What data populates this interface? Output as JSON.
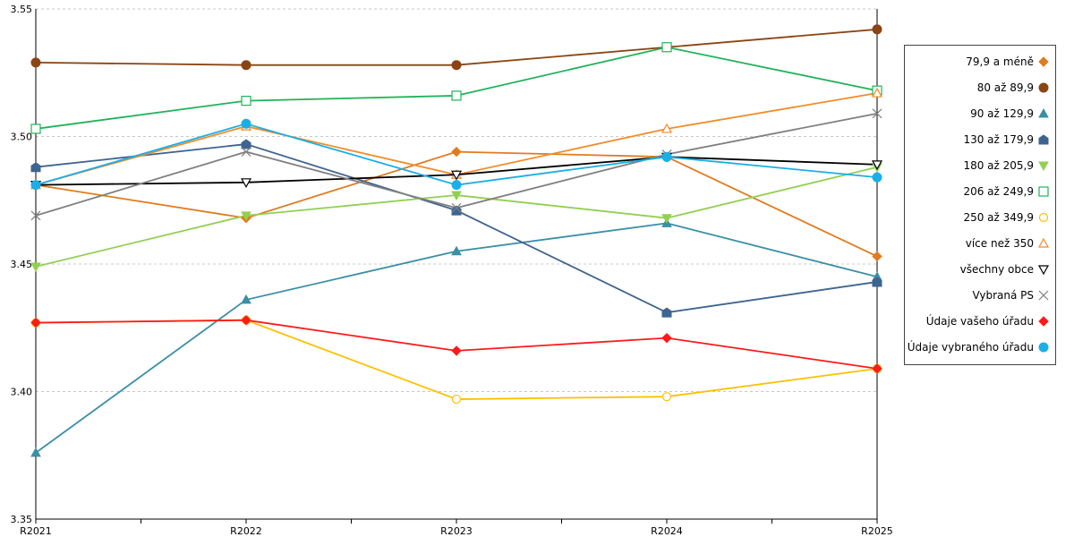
{
  "chart_data": {
    "type": "line",
    "categories": [
      "R2021",
      "R2022",
      "R2023",
      "R2024",
      "R2025"
    ],
    "ylim": [
      3.35,
      3.55
    ],
    "yticks": [
      "3.35",
      "3.40",
      "3.45",
      "3.50",
      "3.55"
    ],
    "grid": true,
    "legend_position": "right",
    "series": [
      {
        "name": "79,9 a méně",
        "color": "#E07B1F",
        "marker": "diamond",
        "values": [
          3.481,
          3.468,
          3.494,
          3.492,
          3.453
        ]
      },
      {
        "name": "80 až 89,9",
        "color": "#8B4513",
        "marker": "circle",
        "values": [
          3.529,
          3.528,
          3.528,
          3.535,
          3.542
        ]
      },
      {
        "name": "90 až 129,9",
        "color": "#3A8FA5",
        "marker": "triangle",
        "values": [
          3.376,
          3.436,
          3.455,
          3.466,
          3.445
        ]
      },
      {
        "name": "130 až 179,9",
        "color": "#3E6491",
        "marker": "pentagon",
        "values": [
          3.488,
          3.497,
          3.471,
          3.431,
          3.443
        ]
      },
      {
        "name": "180 až 205,9",
        "color": "#92D050",
        "marker": "triangle-down",
        "values": [
          3.449,
          3.469,
          3.477,
          3.468,
          3.488
        ]
      },
      {
        "name": "206 až 249,9",
        "color": "#20B35A",
        "marker": "square-open",
        "values": [
          3.503,
          3.514,
          3.516,
          3.535,
          3.518
        ]
      },
      {
        "name": "250 až 349,9",
        "color": "#FFC000",
        "marker": "circle-open",
        "values": [
          3.427,
          3.428,
          3.397,
          3.398,
          3.409
        ]
      },
      {
        "name": "více než 350",
        "color": "#F28C28",
        "marker": "triangle-open",
        "values": [
          3.481,
          3.504,
          3.485,
          3.503,
          3.517
        ]
      },
      {
        "name": "všechny obce",
        "color": "#000000",
        "marker": "triangle-down-open",
        "values": [
          3.481,
          3.482,
          3.485,
          3.492,
          3.489
        ]
      },
      {
        "name": "Vybraná PS",
        "color": "#808080",
        "marker": "x",
        "values": [
          3.469,
          3.494,
          3.472,
          3.493,
          3.509
        ]
      },
      {
        "name": "Údaje vašeho úřadu",
        "color": "#FF1A1A",
        "marker": "diamond",
        "values": [
          3.427,
          3.428,
          3.416,
          3.421,
          3.409
        ]
      },
      {
        "name": "Údaje vybraného úřadu",
        "color": "#1AAFE6",
        "marker": "circle",
        "values": [
          3.481,
          3.505,
          3.481,
          3.492,
          3.484
        ]
      }
    ]
  }
}
